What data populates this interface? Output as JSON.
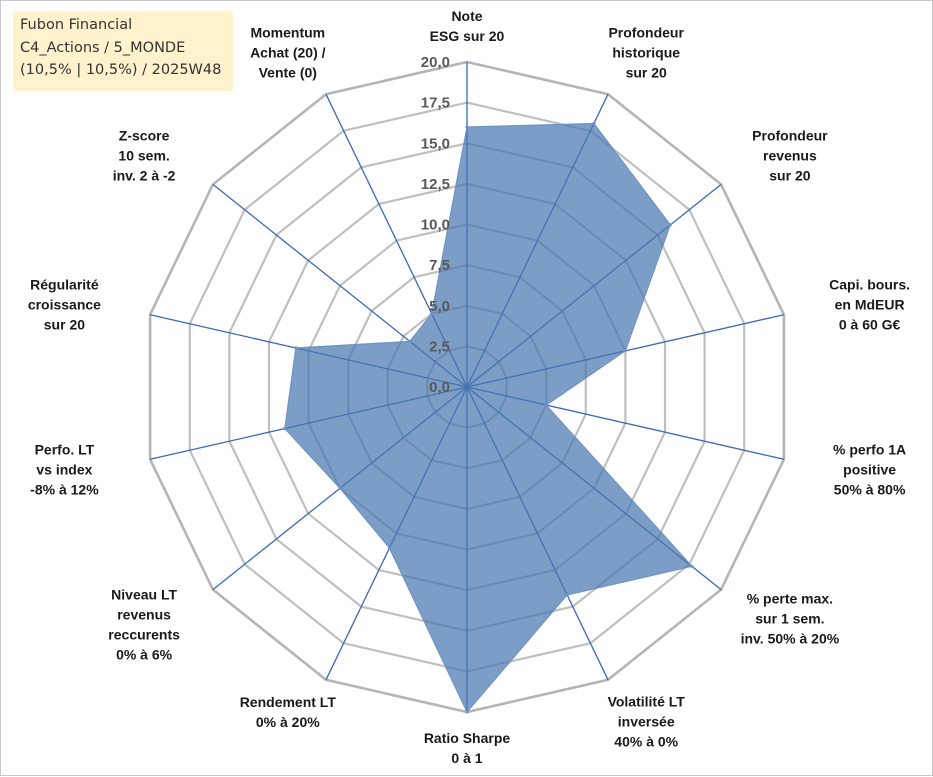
{
  "header": {
    "lines": [
      "Fubon Financial",
      "C4_Actions / 5_MONDE",
      "(10,5% | 10,5%) / 2025W48"
    ]
  },
  "colors": {
    "fill": "#4a77b0",
    "fill_opacity": 0.72,
    "series_stroke": "#6f94c4",
    "spoke": "#3b69b5",
    "ring": "#bfbfbf",
    "outer_ring": "#b5b5b5"
  },
  "chart_data": {
    "type": "radar",
    "range": [
      0,
      20
    ],
    "tick_step": 2.5,
    "tick_labels": [
      "0,0",
      "2,5",
      "5,0",
      "7,5",
      "10,0",
      "12,5",
      "15,0",
      "17,5",
      "20,0"
    ],
    "grid": true,
    "axes": [
      [
        "Note",
        "ESG sur 20"
      ],
      [
        "Profondeur",
        "historique",
        "sur 20"
      ],
      [
        "Profondeur",
        "revenus",
        "sur 20"
      ],
      [
        "Capi. bours.",
        "en MdEUR",
        "0 à 60 G€"
      ],
      [
        "% perfo 1A",
        "positive",
        "50% à 80%"
      ],
      [
        "% perte max.",
        "sur 1 sem.",
        "inv. 50% à 20%"
      ],
      [
        "Volatilité LT",
        "inversée",
        "40% à 0%"
      ],
      [
        "Ratio Sharpe",
        "0 à 1"
      ],
      [
        "Rendement LT",
        "0% à 20%"
      ],
      [
        "Niveau LT",
        "revenus",
        "reccurents",
        "0% à 6%"
      ],
      [
        "Perfo. LT",
        "vs index",
        "-8% à 12%"
      ],
      [
        "Régularité",
        "croissance",
        "sur 20"
      ],
      [
        "Z-score",
        "10 sem.",
        "inv. 2 à -2"
      ],
      [
        "Momentum",
        "Achat (20) /",
        "Vente (0)"
      ]
    ],
    "values": [
      16,
      18,
      16,
      10,
      5,
      17.7,
      14.2,
      20,
      11,
      10,
      11.5,
      10.8,
      4.5,
      5
    ]
  }
}
